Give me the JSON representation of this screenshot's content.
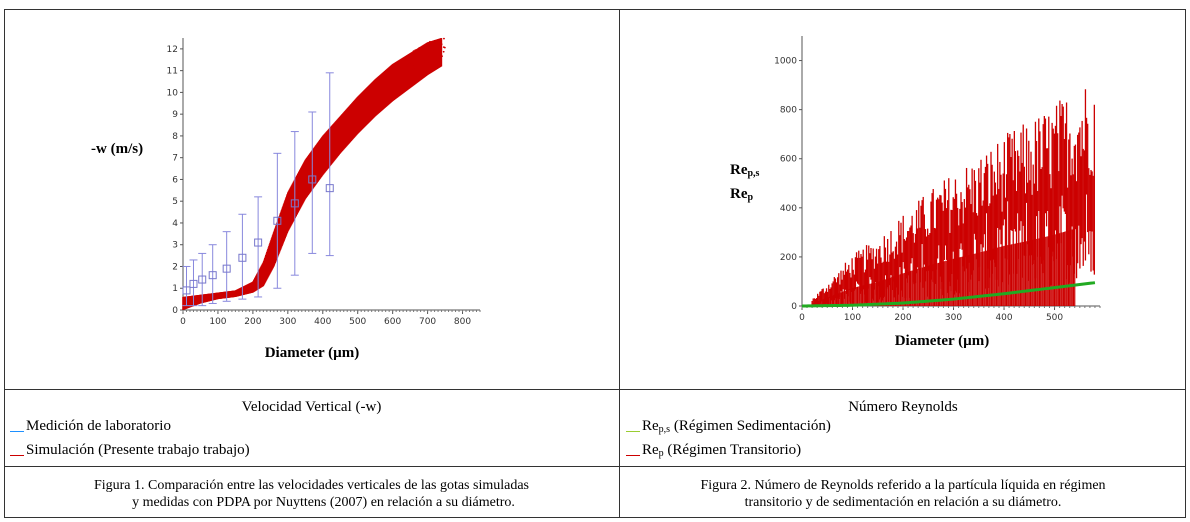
{
  "chart_data": [
    {
      "type": "scatter",
      "xlabel": "Diameter (µm)",
      "ylabel": "-w (m/s)",
      "xlim": [
        0,
        850
      ],
      "ylim": [
        0,
        12.5
      ],
      "x_ticks": [
        "0",
        "100",
        "200",
        "300",
        "400",
        "500",
        "600",
        "700",
        "800"
      ],
      "y_ticks": [
        "0",
        "1",
        "2",
        "3",
        "4",
        "5",
        "6",
        "7",
        "8",
        "9",
        "10",
        "11",
        "12"
      ],
      "title": "Velocidad Vertical (-w)",
      "colors": {
        "lab": "#1e90ff",
        "sim": "#cc0000"
      },
      "series": [
        {
          "name": "Medición de laboratorio",
          "type": "errorbar",
          "x": [
            10,
            30,
            55,
            85,
            125,
            170,
            215,
            270,
            320,
            370,
            420
          ],
          "y": [
            0.9,
            1.2,
            1.4,
            1.6,
            1.9,
            2.4,
            3.1,
            4.1,
            4.9,
            6.0,
            5.6
          ],
          "y_low": [
            0.2,
            0.2,
            0.2,
            0.3,
            0.4,
            0.5,
            0.6,
            1.0,
            1.6,
            2.6,
            2.5
          ],
          "y_high": [
            2.0,
            2.3,
            2.6,
            3.0,
            3.6,
            4.4,
            5.2,
            7.2,
            8.2,
            9.1,
            10.9
          ]
        },
        {
          "name": "Simulación (Presente trabajo trabajo)",
          "type": "scatter",
          "x": [
            0,
            50,
            100,
            150,
            200,
            230,
            260,
            300,
            350,
            400,
            450,
            500,
            550,
            600,
            650,
            700,
            740
          ],
          "y_low": [
            0.0,
            0.3,
            0.5,
            0.6,
            0.8,
            1.1,
            2.0,
            3.6,
            5.1,
            6.2,
            7.2,
            8.1,
            8.9,
            9.6,
            10.2,
            10.8,
            11.2
          ],
          "y_high": [
            0.6,
            0.7,
            0.8,
            0.9,
            1.3,
            2.2,
            3.6,
            5.4,
            6.9,
            8.0,
            8.9,
            9.8,
            10.6,
            11.3,
            11.8,
            12.3,
            12.5
          ]
        }
      ]
    },
    {
      "type": "scatter",
      "xlabel": "Diameter (µm)",
      "ylabel_lines": [
        "Re_p,s",
        "Re_p"
      ],
      "xlim": [
        0,
        590
      ],
      "ylim": [
        0,
        1100
      ],
      "x_ticks": [
        "0",
        "100",
        "200",
        "300",
        "400",
        "500"
      ],
      "y_ticks": [
        "0",
        "200",
        "400",
        "600",
        "800",
        "1000"
      ],
      "title": "Número Reynolds",
      "colors": {
        "sed": "#22aa22",
        "trans": "#cc0000"
      },
      "series": [
        {
          "name": "Rep,s (Régimen Sedimentación)",
          "type": "line",
          "x": [
            0,
            100,
            200,
            300,
            400,
            500,
            580
          ],
          "y": [
            0,
            3,
            12,
            28,
            50,
            75,
            95
          ]
        },
        {
          "name": "Rep (Régimen Transitorio)",
          "type": "scatter",
          "x": [
            20,
            60,
            100,
            150,
            200,
            250,
            300,
            350,
            400,
            450,
            500,
            540,
            580
          ],
          "y_high": [
            30,
            120,
            210,
            280,
            380,
            470,
            550,
            620,
            700,
            760,
            830,
            900,
            960
          ]
        }
      ]
    }
  ],
  "legend_left": {
    "lab": "Medición de laboratorio",
    "sim": "Simulación (Presente trabajo trabajo)"
  },
  "legend_right": {
    "sed_prefix": "Re",
    "sed_sub": "p,s",
    "sed_text": " (Régimen Sedimentación)",
    "trans_prefix": "Re",
    "trans_sub": "p",
    "trans_text": " (Régimen Transitorio)"
  },
  "ylabel_right": {
    "l1_prefix": "Re",
    "l1_sub": "p,s",
    "l2_prefix": "Re",
    "l2_sub": "p"
  },
  "captions": {
    "fig1_line1": "Figura 1. Comparación entre las velocidades verticales de las gotas simuladas",
    "fig1_line2": "y  medidas con PDPA por Nuyttens (2007) en relación a su diámetro.",
    "fig2_line1": "Figura 2. Número de Reynolds referido a la partícula líquida en régimen",
    "fig2_line2": "transitorio y de sedimentación en relación a su diámetro."
  }
}
